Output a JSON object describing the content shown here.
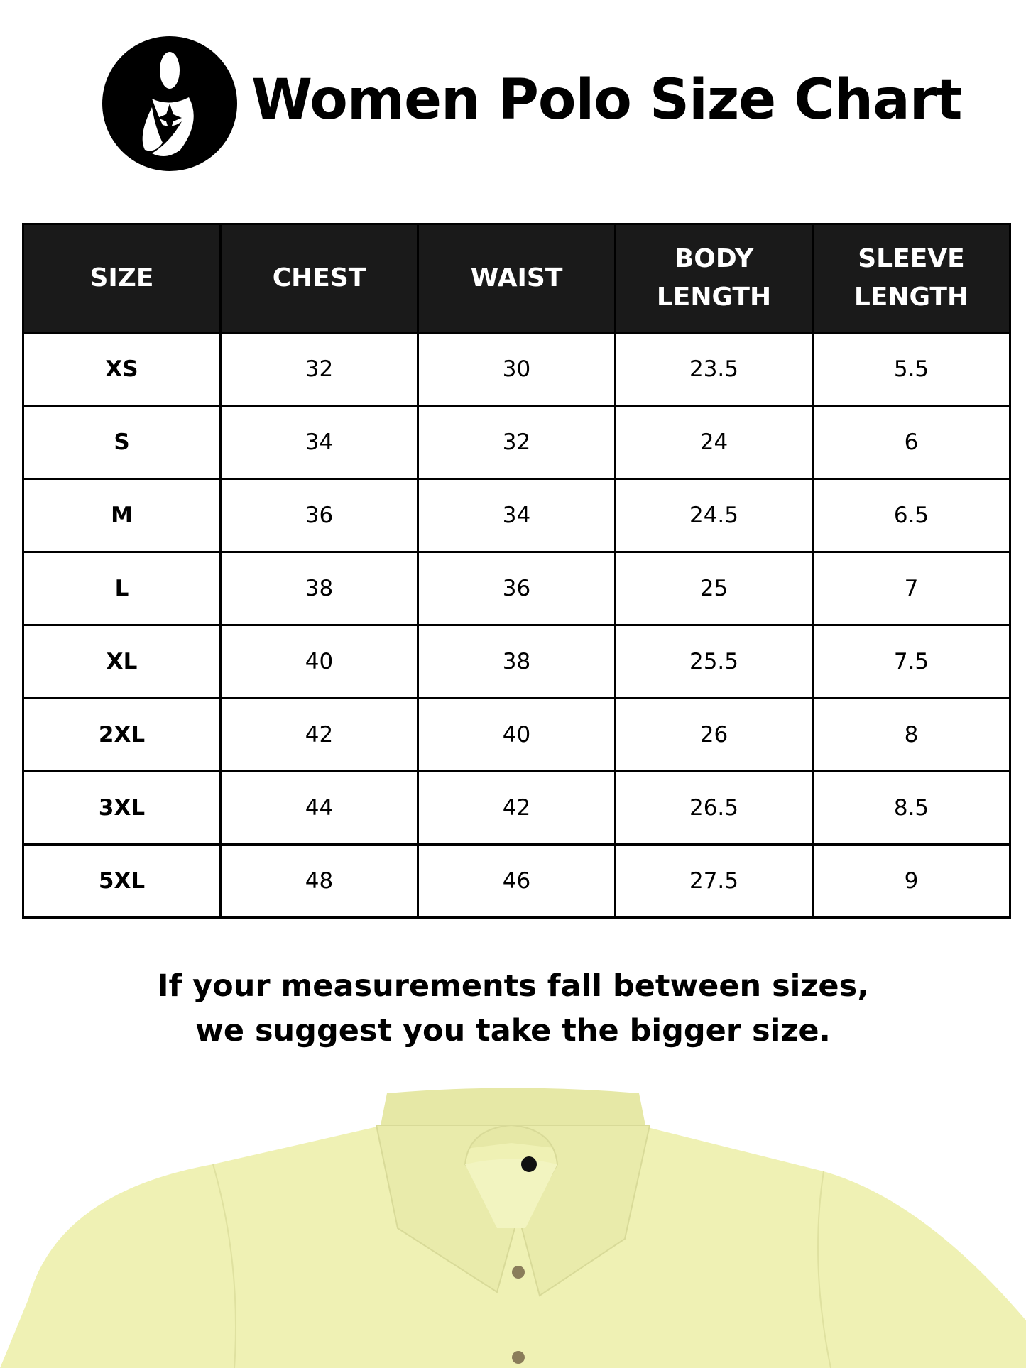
{
  "header": {
    "title": "Women Polo Size Chart",
    "logo": "mother-child-circle-logo"
  },
  "table": {
    "columns": [
      [
        "SIZE"
      ],
      [
        "CHEST"
      ],
      [
        "WAIST"
      ],
      [
        "BODY",
        "LENGTH"
      ],
      [
        "SLEEVE",
        "LENGTH"
      ]
    ],
    "rows": [
      [
        "XS",
        "32",
        "30",
        "23.5",
        "5.5"
      ],
      [
        "S",
        "34",
        "32",
        "24",
        "6"
      ],
      [
        "M",
        "36",
        "34",
        "24.5",
        "6.5"
      ],
      [
        "L",
        "38",
        "36",
        "25",
        "7"
      ],
      [
        "XL",
        "40",
        "38",
        "25.5",
        "7.5"
      ],
      [
        "2XL",
        "42",
        "40",
        "26",
        "8"
      ],
      [
        "3XL",
        "44",
        "42",
        "26.5",
        "8.5"
      ],
      [
        "5XL",
        "48",
        "46",
        "27.5",
        "9"
      ]
    ]
  },
  "note": {
    "line1": "If your measurements fall between sizes,",
    "line2": "we suggest you take the bigger size."
  },
  "colors": {
    "header_bg": "#1a1a1a",
    "shirt": "#eff1b4"
  }
}
